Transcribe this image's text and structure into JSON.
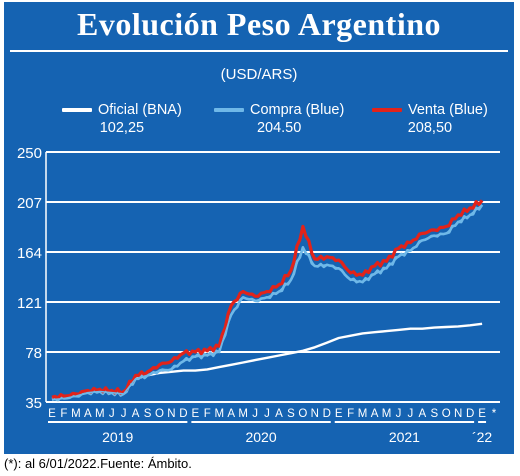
{
  "header": {
    "title": "Evolución Peso Argentino",
    "subtitle": "(USD/ARS)"
  },
  "legend": [
    {
      "label": "Oficial (BNA)",
      "value": "102,25",
      "color": "#ffffff"
    },
    {
      "label": "Compra (Blue)",
      "value": "204.50",
      "color": "#6fb8e8"
    },
    {
      "label": "Venta (Blue)",
      "value": "208,50",
      "color": "#e2231a"
    }
  ],
  "footnote": "(*): al 6/01/2022.Fuente: Ámbito.",
  "colors": {
    "background": "#1563b2",
    "plot": "#1563b2",
    "grid": "#ffffff",
    "text": "#ffffff"
  },
  "chart_data": {
    "type": "line",
    "title": "Evolución Peso Argentino",
    "subtitle": "(USD/ARS)",
    "ylim": [
      35,
      250
    ],
    "yticks": [
      35,
      78,
      121,
      164,
      207,
      250
    ],
    "grid": true,
    "legend_position": "top",
    "month_labels": [
      "E",
      "F",
      "M",
      "A",
      "M",
      "J",
      "J",
      "A",
      "S",
      "O",
      "N",
      "D",
      "E",
      "F",
      "M",
      "A",
      "M",
      "J",
      "J",
      "A",
      "S",
      "O",
      "N",
      "D",
      "E",
      "F",
      "M",
      "A",
      "M",
      "J",
      "J",
      "A",
      "S",
      "O",
      "N",
      "D",
      "E",
      "*"
    ],
    "year_labels": [
      "2019",
      "2020",
      "2021",
      "´22"
    ],
    "x": [
      "ene-19",
      "feb-19",
      "mar-19",
      "abr-19",
      "may-19",
      "jun-19",
      "jul-19",
      "ago-19",
      "sep-19",
      "oct-19",
      "nov-19",
      "dic-19",
      "ene-20",
      "feb-20",
      "mar-20",
      "abr-20",
      "may-20",
      "jun-20",
      "jul-20",
      "ago-20",
      "sep-20",
      "oct-20",
      "nov-20",
      "dic-20",
      "ene-21",
      "feb-21",
      "mar-21",
      "abr-21",
      "may-21",
      "jun-21",
      "jul-21",
      "ago-21",
      "sep-21",
      "oct-21",
      "nov-21",
      "dic-21",
      "ene-22"
    ],
    "series": [
      {
        "name": "Oficial (BNA)",
        "color": "#ffffff",
        "values": [
          38,
          39,
          41,
          44,
          45,
          44,
          43,
          55,
          58,
          60,
          61,
          62,
          62,
          63,
          65,
          67,
          69,
          71,
          73,
          75,
          77,
          79,
          82,
          86,
          90,
          92,
          94,
          95,
          96,
          97,
          98,
          98,
          99,
          99.5,
          100,
          101,
          102.25
        ]
      },
      {
        "name": "Compra (Blue)",
        "color": "#6fb8e8",
        "values": [
          37,
          38,
          40,
          43,
          44,
          43,
          42,
          55,
          58,
          62,
          63,
          70,
          74,
          75,
          78,
          110,
          125,
          122,
          125,
          130,
          140,
          168,
          152,
          153,
          150,
          140,
          138,
          145,
          150,
          160,
          165,
          174,
          178,
          180,
          190,
          196,
          204.5
        ]
      },
      {
        "name": "Venta (Blue)",
        "color": "#e2231a",
        "values": [
          39,
          40,
          42,
          45,
          46,
          45,
          44,
          58,
          61,
          67,
          70,
          77,
          78,
          79,
          83,
          118,
          130,
          126,
          130,
          136,
          148,
          186,
          158,
          160,
          157,
          146,
          144,
          152,
          156,
          167,
          172,
          180,
          183,
          186,
          196,
          202,
          208.5
        ]
      }
    ]
  }
}
